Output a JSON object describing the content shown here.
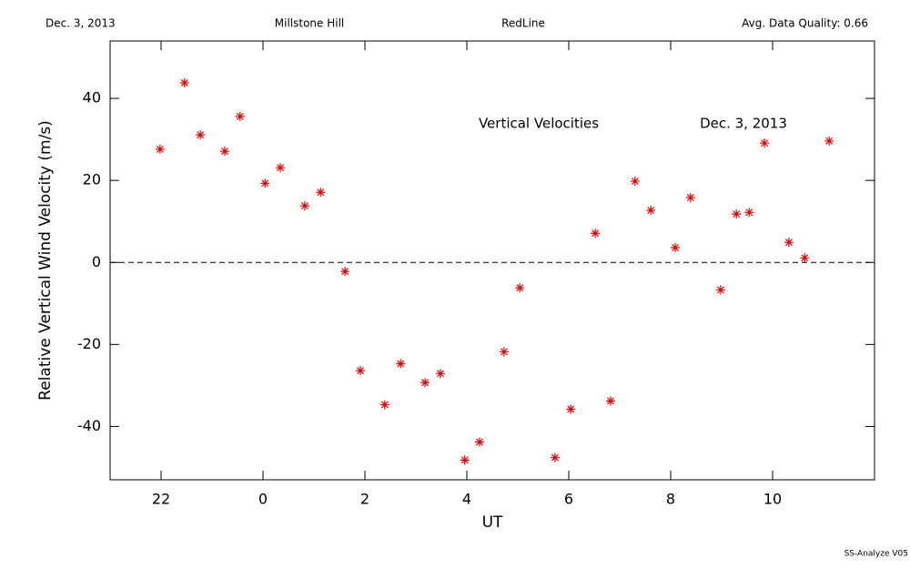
{
  "chart_data": {
    "type": "scatter",
    "header": {
      "left": "Dec. 3, 2013",
      "center_left": "Millstone Hill",
      "center_right": "RedLine",
      "right": "Avg. Data Quality: 0.66"
    },
    "annotations": [
      "Vertical Velocities",
      "Dec. 3, 2013"
    ],
    "x_label": "UT",
    "y_label": "Relative Vertical Wind Velocity (m/s)",
    "footer": "SS-Analyze V05",
    "xlim": [
      -3,
      12
    ],
    "xticks": [
      {
        "value": -2,
        "label": "22"
      },
      0,
      2,
      4,
      6,
      8,
      10
    ],
    "ylim": [
      -53,
      54
    ],
    "yticks": [
      -40,
      -20,
      0,
      20,
      40
    ],
    "zero_line": true,
    "grid": false,
    "series": [
      {
        "color": "#e00000",
        "x": [
          -2.02,
          -1.54,
          -1.23,
          -0.75,
          -0.45,
          0.04,
          0.34,
          0.82,
          1.13,
          1.61,
          1.91,
          2.39,
          2.7,
          3.18,
          3.48,
          3.96,
          4.25,
          4.73,
          5.04,
          5.73,
          6.04,
          6.52,
          6.82,
          7.3,
          7.61,
          8.09,
          8.39,
          8.98,
          9.29,
          9.54,
          9.84,
          10.32,
          10.63,
          11.11
        ],
        "values": [
          27.6,
          43.8,
          31.1,
          27.1,
          35.6,
          19.3,
          23.1,
          13.8,
          17.1,
          -2.2,
          -26.4,
          -34.7,
          -24.7,
          -29.3,
          -27.1,
          -48.2,
          -43.8,
          -21.8,
          -6.2,
          -47.6,
          -35.8,
          7.1,
          -33.8,
          19.8,
          12.7,
          3.6,
          15.8,
          -6.7,
          11.8,
          12.2,
          29.1,
          4.9,
          1.1,
          29.6
        ]
      }
    ]
  }
}
